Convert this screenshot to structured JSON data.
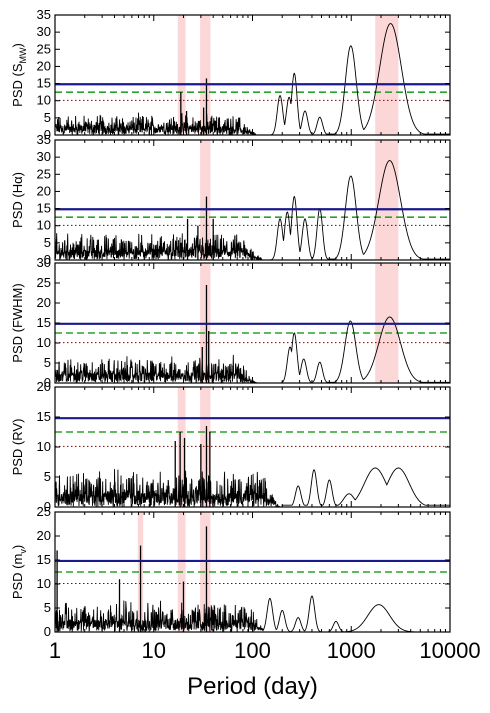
{
  "chart_data": {
    "type": "line",
    "x_scale": "log",
    "xlim": [
      1,
      10000
    ],
    "xlabel": "Period (day)",
    "x_tick_labels": [
      "1",
      "10",
      "100",
      "1000",
      "10000"
    ],
    "x_ticks": [
      1,
      10,
      100,
      1000,
      10000
    ],
    "colors": {
      "psd_line": "#000000",
      "threshold_solid": "#1a1a8c",
      "threshold_dashed": "#2ca02c",
      "threshold_dotted": "#8b0000",
      "highlight_band": "#f9c9c9"
    },
    "panels": [
      {
        "ylabel": "PSD (S",
        "ylabel_sub": "MW",
        "ylabel_end": ")",
        "ylim": [
          0,
          35
        ],
        "yticks": [
          0,
          5,
          10,
          15,
          20,
          25,
          30,
          35
        ],
        "thresholds": {
          "solid": 14.8,
          "dashed": 12.5,
          "dotted": 10.1
        },
        "bands": [
          [
            17.5,
            21
          ],
          [
            29.5,
            37.5
          ],
          [
            1750,
            3000
          ]
        ],
        "noise": {
          "from": 1.0,
          "to": 70,
          "base": 2.6,
          "amp": 4.2
        },
        "spikes": [
          [
            18.8,
            12.5
          ],
          [
            21.5,
            7
          ],
          [
            34.2,
            16.5
          ],
          [
            32,
            8
          ]
        ],
        "peaks": [
          [
            190,
            11.5
          ],
          [
            235,
            11
          ],
          [
            265,
            18
          ],
          [
            340,
            7
          ],
          [
            480,
            5.2
          ],
          [
            990,
            26
          ],
          [
            2500,
            32.5
          ]
        ],
        "tail_floor": 0.9
      },
      {
        "ylabel": "PSD (Hα)",
        "ylim": [
          0,
          35
        ],
        "yticks": [
          0,
          5,
          10,
          15,
          20,
          25,
          30,
          35
        ],
        "thresholds": {
          "solid": 14.8,
          "dashed": 12.5,
          "dotted": 10.1
        },
        "bands": [
          [
            29.5,
            37.5
          ],
          [
            1750,
            3000
          ]
        ],
        "noise": {
          "from": 1.0,
          "to": 80,
          "base": 3.0,
          "amp": 5.5
        },
        "spikes": [
          [
            34.2,
            18.5
          ],
          [
            22,
            12
          ],
          [
            40,
            12
          ],
          [
            28,
            10
          ]
        ],
        "peaks": [
          [
            190,
            12
          ],
          [
            225,
            14
          ],
          [
            265,
            18.5
          ],
          [
            340,
            12
          ],
          [
            480,
            15
          ],
          [
            990,
            24.5
          ],
          [
            2450,
            29
          ]
        ],
        "tail_floor": 0.9
      },
      {
        "ylabel": "PSD (FWHM)",
        "ylim": [
          0,
          30
        ],
        "yticks": [
          0,
          5,
          10,
          15,
          20,
          25,
          30
        ],
        "thresholds": {
          "solid": 14.8,
          "dashed": 12.5,
          "dotted": 10.1
        },
        "bands": [
          [
            29.5,
            37.5
          ],
          [
            1750,
            3000
          ]
        ],
        "noise": {
          "from": 1.0,
          "to": 70,
          "base": 2.6,
          "amp": 4.6
        },
        "spikes": [
          [
            34.2,
            24.5
          ],
          [
            36,
            13
          ],
          [
            31,
            9
          ]
        ],
        "peaks": [
          [
            240,
            9
          ],
          [
            265,
            12.5
          ],
          [
            330,
            6
          ],
          [
            480,
            5.2
          ],
          [
            980,
            15.5
          ],
          [
            2450,
            16.5
          ]
        ],
        "tail_floor": 0.6
      },
      {
        "ylabel": "PSD (RV)",
        "ylim": [
          0,
          20
        ],
        "yticks": [
          0,
          5,
          10,
          15,
          20
        ],
        "thresholds": {
          "solid": 14.8,
          "dashed": 12.5,
          "dotted": 10.1
        },
        "bands": [
          [
            17.5,
            21
          ],
          [
            29.5,
            37.5
          ]
        ],
        "noise": {
          "from": 1.0,
          "to": 120,
          "base": 2.2,
          "amp": 4.6
        },
        "spikes": [
          [
            18.5,
            12.5
          ],
          [
            16.5,
            11
          ],
          [
            34.2,
            13.5
          ],
          [
            37,
            12.5
          ],
          [
            30,
            10.5
          ],
          [
            20.5,
            11.5
          ]
        ],
        "peaks": [
          [
            290,
            3.5
          ],
          [
            420,
            6.2
          ],
          [
            600,
            4.5
          ],
          [
            950,
            2.2
          ],
          [
            1750,
            6.5
          ],
          [
            3000,
            6.5
          ]
        ],
        "tail_floor": 1.0
      },
      {
        "ylabel": "PSD (m",
        "ylabel_sub": "v",
        "ylabel_end": ")",
        "ylim": [
          0,
          25
        ],
        "yticks": [
          0,
          5,
          10,
          15,
          20,
          25
        ],
        "thresholds": {
          "solid": 14.8,
          "dashed": 12.5,
          "dotted": 10.1
        },
        "bands": [
          [
            6.9,
            7.8
          ],
          [
            17.5,
            21
          ],
          [
            29.5,
            37.5
          ]
        ],
        "noise": {
          "from": 1.0,
          "to": 90,
          "base": 2.4,
          "amp": 5.0
        },
        "spikes": [
          [
            1.05,
            17
          ],
          [
            7.35,
            18
          ],
          [
            34.2,
            22
          ],
          [
            20,
            10.5
          ],
          [
            4.5,
            11
          ]
        ],
        "peaks": [
          [
            150,
            7
          ],
          [
            200,
            4.5
          ],
          [
            290,
            3
          ],
          [
            400,
            7.5
          ],
          [
            700,
            2.2
          ],
          [
            1900,
            5.7
          ]
        ],
        "tail_floor": 0.0
      }
    ]
  }
}
